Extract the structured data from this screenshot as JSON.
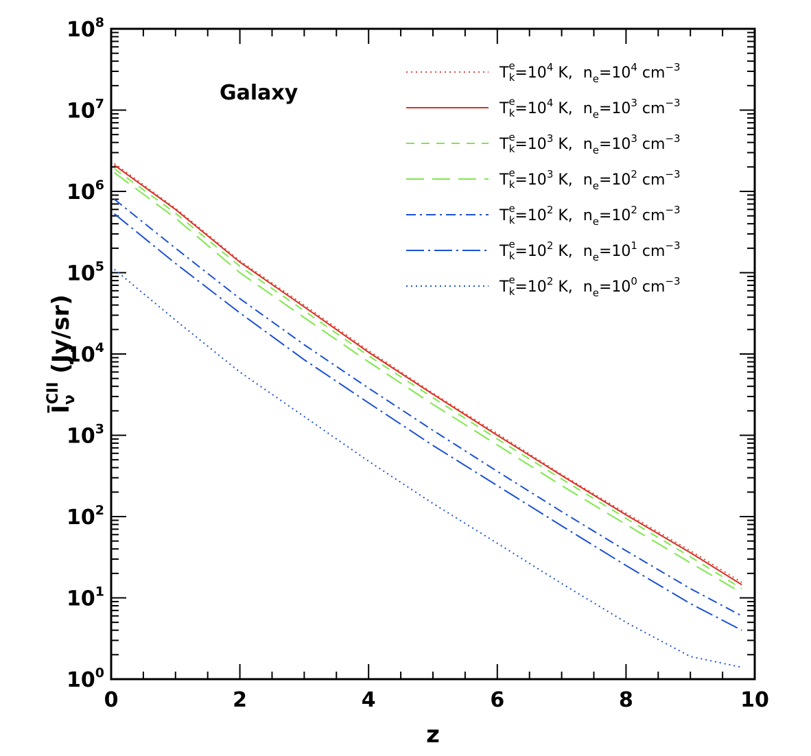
{
  "chart_data": {
    "type": "line",
    "annotation": "Galaxy",
    "xlabel": "z",
    "ylabel": {
      "symbol": "Ī",
      "sub": "ν",
      "sup": "CII",
      "unit": "(Jy/sr)"
    },
    "xlim": [
      0,
      10
    ],
    "ylim": [
      1,
      100000000
    ],
    "yscale": "log",
    "grid": false,
    "legend_position": "top-right",
    "x_ticks": [
      {
        "value": 0,
        "label": "0"
      },
      {
        "value": 2,
        "label": "2"
      },
      {
        "value": 4,
        "label": "4"
      },
      {
        "value": 6,
        "label": "6"
      },
      {
        "value": 8,
        "label": "8"
      },
      {
        "value": 10,
        "label": "10"
      }
    ],
    "y_ticks": [
      {
        "value": 1,
        "base": "10",
        "exp": "0"
      },
      {
        "value": 10,
        "base": "10",
        "exp": "1"
      },
      {
        "value": 100,
        "base": "10",
        "exp": "2"
      },
      {
        "value": 1000,
        "base": "10",
        "exp": "3"
      },
      {
        "value": 10000,
        "base": "10",
        "exp": "4"
      },
      {
        "value": 100000,
        "base": "10",
        "exp": "5"
      },
      {
        "value": 1000000,
        "base": "10",
        "exp": "6"
      },
      {
        "value": 10000000,
        "base": "10",
        "exp": "7"
      },
      {
        "value": 100000000,
        "base": "10",
        "exp": "8"
      }
    ],
    "x": [
      0.05,
      1,
      2,
      3,
      4,
      5,
      6,
      7,
      8,
      9,
      9.8
    ],
    "series": [
      {
        "label": {
          "t": "4",
          "n": "4"
        },
        "color": "#e8453c",
        "dash": "dotted",
        "y": [
          2200000,
          620000,
          140000,
          40000,
          11000,
          3300,
          1050,
          330,
          110,
          38,
          15.5
        ]
      },
      {
        "label": {
          "t": "4",
          "n": "3"
        },
        "color": "#d93025",
        "dash": "solid",
        "y": [
          2100000,
          600000,
          135000,
          38000,
          10500,
          3200,
          1000,
          320,
          105,
          36,
          14.5
        ]
      },
      {
        "label": {
          "t": "3",
          "n": "3"
        },
        "color": "#7ee84a",
        "dash": "short-dash",
        "y": [
          1900000,
          540000,
          120000,
          34000,
          9500,
          2900,
          900,
          290,
          95,
          32,
          13
        ]
      },
      {
        "label": {
          "t": "3",
          "n": "2"
        },
        "color": "#7ee84a",
        "dash": "long-dash",
        "y": [
          1700000,
          470000,
          100000,
          28000,
          8000,
          2400,
          760,
          240,
          80,
          27,
          11.5
        ]
      },
      {
        "label": {
          "t": "2",
          "n": "2"
        },
        "color": "#1a4fd6",
        "dash": "dash-dot",
        "y": [
          800000,
          200000,
          48000,
          13000,
          3800,
          1150,
          360,
          115,
          38,
          13,
          6
        ]
      },
      {
        "label": {
          "t": "2",
          "n": "1"
        },
        "color": "#1a4fd6",
        "dash": "long-dash-dot",
        "y": [
          530000,
          130000,
          32000,
          8500,
          2500,
          750,
          240,
          77,
          25,
          8.5,
          4
        ]
      },
      {
        "label": {
          "t": "2",
          "n": "0"
        },
        "color": "#1a4fd6",
        "dash": "dotted",
        "y": [
          110000,
          26000,
          6000,
          1700,
          480,
          145,
          47,
          15,
          5,
          1.9,
          1.4
        ]
      }
    ],
    "legend_template": {
      "T": "T",
      "T_sup": "e",
      "T_sub": "k",
      "eq1": "=10",
      "unit_K": " K,",
      "n": "n",
      "n_sub": "e",
      "eq2": "=10",
      "unit_cm": " cm",
      "cm_exp": "−3"
    }
  }
}
